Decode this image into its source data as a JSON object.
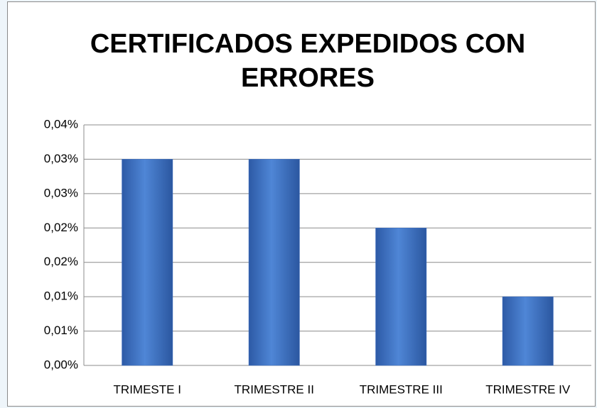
{
  "chart_data": {
    "type": "bar",
    "title": "CERTIFICADOS EXPEDIDOS CON ERRORES",
    "categories": [
      "TRIMESTE I",
      "TRIMESTRE II",
      "TRIMESTRE III",
      "TRIMESTRE IV"
    ],
    "values": [
      0.03,
      0.03,
      0.02,
      0.01
    ],
    "color": "#3a6cc0",
    "ylim": [
      0,
      0.035
    ],
    "yticks": [
      {
        "value": 0,
        "label": "0,00%"
      },
      {
        "value": 0.005,
        "label": "0,01%"
      },
      {
        "value": 0.01,
        "label": "0,01%"
      },
      {
        "value": 0.015,
        "label": "0,02%"
      },
      {
        "value": 0.02,
        "label": "0,02%"
      },
      {
        "value": 0.025,
        "label": "0,03%"
      },
      {
        "value": 0.03,
        "label": "0,03%"
      },
      {
        "value": 0.035,
        "label": "0,04%"
      }
    ],
    "grid": true
  }
}
